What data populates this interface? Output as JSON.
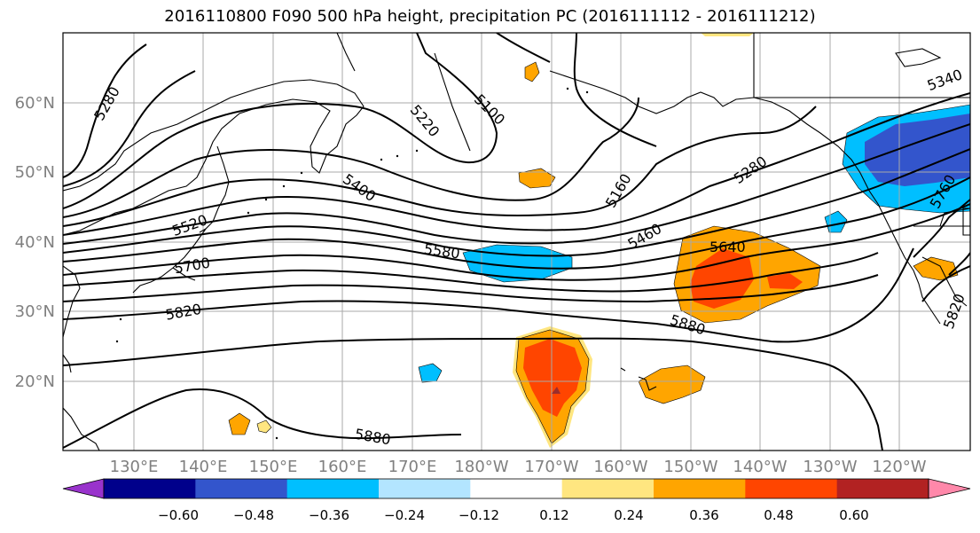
{
  "title": "2016110800 F090 500 hPa height, precipitation PC (2016111112 - 2016111212)",
  "map": {
    "latitude_labels": [
      "60°N",
      "50°N",
      "40°N",
      "30°N",
      "20°N"
    ],
    "longitude_labels": [
      "130°E",
      "140°E",
      "150°E",
      "160°E",
      "170°E",
      "180°W",
      "170°W",
      "160°W",
      "150°W",
      "140°W",
      "130°W",
      "120°W"
    ],
    "grid": true,
    "coastline_color": "#000000"
  },
  "contours": {
    "variable": "500 hPa height",
    "labels": [
      "5280",
      "5220",
      "5100",
      "5160",
      "5280",
      "5340",
      "5400",
      "5520",
      "5700",
      "5820",
      "5580",
      "5460",
      "5640",
      "5880",
      "5880",
      "5760",
      "5820"
    ]
  },
  "colorbar": {
    "tick_labels": [
      "−0.60",
      "−0.48",
      "−0.36",
      "−0.24",
      "−0.12",
      "0.12",
      "0.24",
      "0.36",
      "0.48",
      "0.60"
    ],
    "colors": [
      "#9933cc",
      "#00008b",
      "#3355cc",
      "#00bfff",
      "#b3e5ff",
      "#ffffff",
      "#ffe680",
      "#ffa500",
      "#ff4500",
      "#b22222",
      "#ff88aa"
    ]
  }
}
